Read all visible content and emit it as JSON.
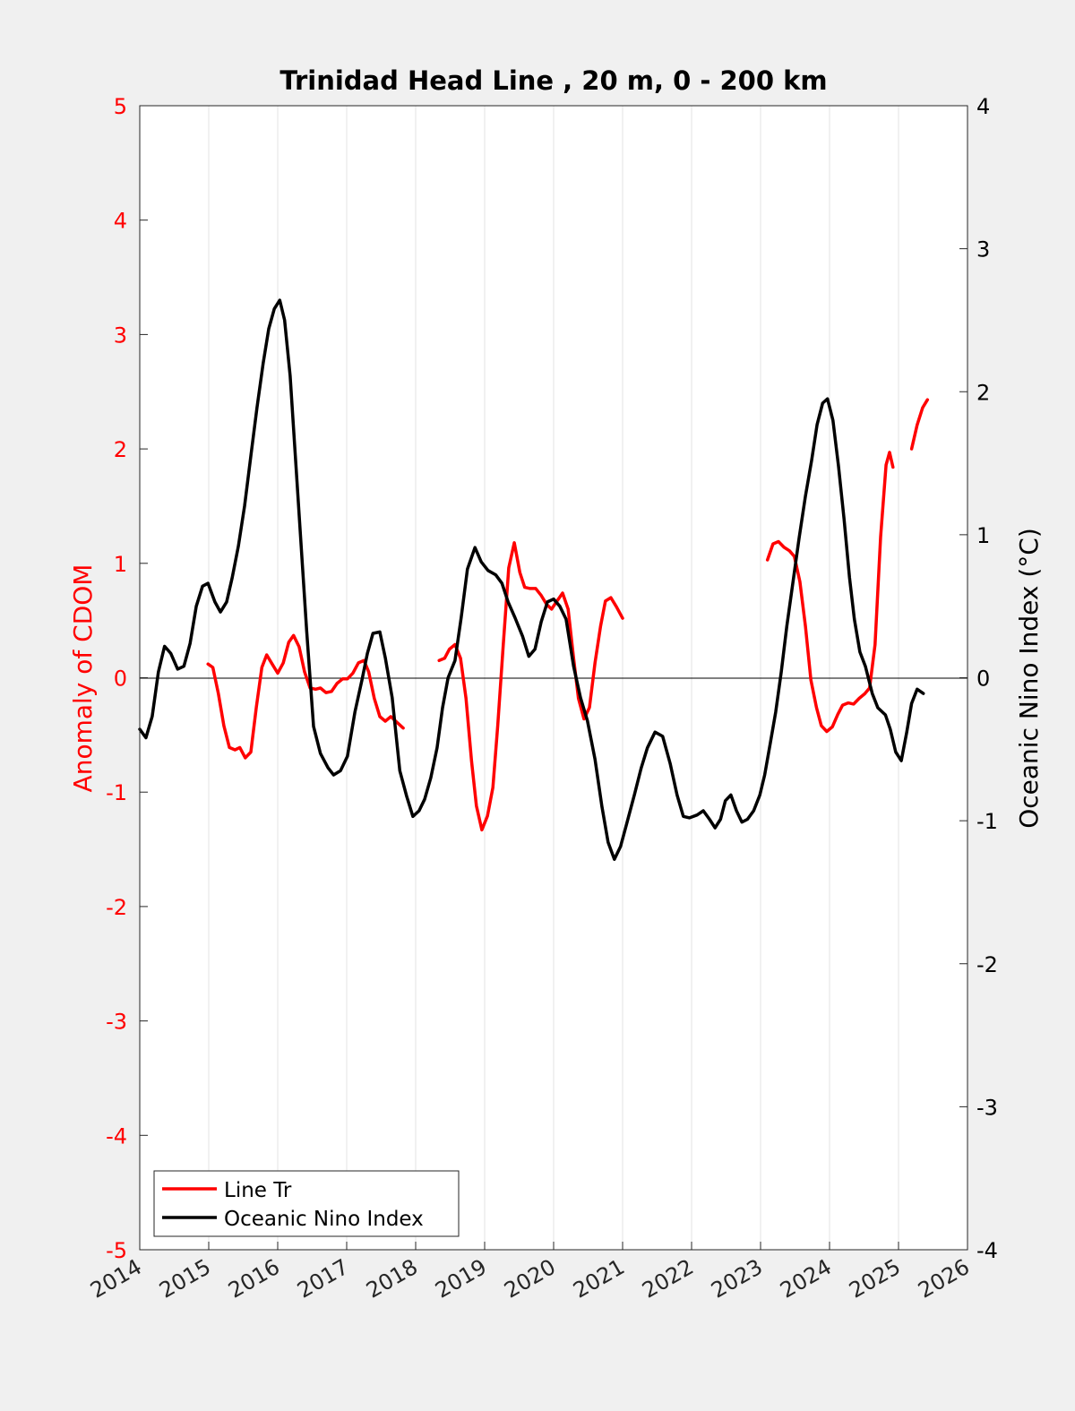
{
  "chart_data": {
    "type": "line",
    "title": "Trinidad Head Line , 20 m, 0 - 200 km",
    "xlabel": "",
    "ylabel_left": "Anomaly of CDOM",
    "ylabel_right": "Oceanic Nino Index (°C)",
    "xlim": [
      2014,
      2026
    ],
    "ylim_left": [
      -5,
      5
    ],
    "ylim_right": [
      -4,
      4
    ],
    "xticks": [
      2014,
      2015,
      2016,
      2017,
      2018,
      2019,
      2020,
      2021,
      2022,
      2023,
      2024,
      2025,
      2026
    ],
    "xtick_labels": [
      "2014",
      "2015",
      "2016",
      "2017",
      "2018",
      "2019",
      "2020",
      "2021",
      "2022",
      "2023",
      "2024",
      "2025",
      "2026"
    ],
    "yticks_left": [
      5,
      4,
      3,
      2,
      1,
      0,
      -1,
      -2,
      -3,
      -4,
      -5
    ],
    "ytick_labels_left": [
      "5",
      "4",
      "3",
      "2",
      "1",
      "0",
      "-1",
      "-2",
      "-3",
      "-4",
      "-5"
    ],
    "yticks_right": [
      4,
      3,
      2,
      1,
      0,
      -1,
      -2,
      -3,
      -4
    ],
    "ytick_labels_right": [
      "4",
      "3",
      "2",
      "1",
      "0",
      "-1",
      "-2",
      "-3",
      "-4"
    ],
    "grid": "vertical",
    "legend_position": "bottom-left",
    "colors": {
      "cdom": "#ff0000",
      "oni": "#000000",
      "left_axis": "#ff0000",
      "right_axis": "#000000"
    },
    "series": [
      {
        "name": "Line Tr",
        "axis": "left",
        "segments": [
          [
            [
              2014.99,
              0.12
            ],
            [
              2015.06,
              0.09
            ],
            [
              2015.14,
              -0.14
            ],
            [
              2015.22,
              -0.42
            ],
            [
              2015.3,
              -0.61
            ],
            [
              2015.38,
              -0.63
            ],
            [
              2015.45,
              -0.61
            ],
            [
              2015.53,
              -0.7
            ],
            [
              2015.61,
              -0.65
            ],
            [
              2015.69,
              -0.26
            ],
            [
              2015.77,
              0.09
            ],
            [
              2015.84,
              0.2
            ],
            [
              2015.92,
              0.12
            ],
            [
              2016.0,
              0.04
            ],
            [
              2016.08,
              0.13
            ],
            [
              2016.16,
              0.31
            ],
            [
              2016.23,
              0.37
            ],
            [
              2016.31,
              0.27
            ],
            [
              2016.39,
              0.05
            ],
            [
              2016.47,
              -0.09
            ],
            [
              2016.55,
              -0.1
            ],
            [
              2016.62,
              -0.09
            ],
            [
              2016.7,
              -0.13
            ],
            [
              2016.78,
              -0.12
            ],
            [
              2016.86,
              -0.05
            ],
            [
              2016.94,
              -0.01
            ],
            [
              2017.01,
              -0.01
            ],
            [
              2017.09,
              0.04
            ],
            [
              2017.17,
              0.13
            ],
            [
              2017.25,
              0.15
            ],
            [
              2017.32,
              0.05
            ],
            [
              2017.4,
              -0.18
            ],
            [
              2017.48,
              -0.34
            ],
            [
              2017.56,
              -0.38
            ],
            [
              2017.64,
              -0.34
            ],
            [
              2017.71,
              -0.38
            ],
            [
              2017.82,
              -0.44
            ]
          ],
          [
            [
              2018.34,
              0.15
            ],
            [
              2018.42,
              0.17
            ],
            [
              2018.49,
              0.25
            ],
            [
              2018.57,
              0.29
            ],
            [
              2018.65,
              0.17
            ],
            [
              2018.73,
              -0.18
            ],
            [
              2018.81,
              -0.73
            ],
            [
              2018.88,
              -1.12
            ],
            [
              2018.96,
              -1.33
            ],
            [
              2019.04,
              -1.21
            ],
            [
              2019.12,
              -0.96
            ],
            [
              2019.19,
              -0.42
            ],
            [
              2019.27,
              0.29
            ],
            [
              2019.35,
              0.96
            ],
            [
              2019.43,
              1.18
            ],
            [
              2019.51,
              0.92
            ],
            [
              2019.58,
              0.79
            ],
            [
              2019.66,
              0.78
            ],
            [
              2019.74,
              0.78
            ],
            [
              2019.82,
              0.72
            ],
            [
              2019.9,
              0.64
            ],
            [
              2019.97,
              0.6
            ],
            [
              2020.05,
              0.67
            ],
            [
              2020.13,
              0.74
            ],
            [
              2020.21,
              0.6
            ],
            [
              2020.29,
              0.17
            ],
            [
              2020.36,
              -0.18
            ],
            [
              2020.44,
              -0.36
            ],
            [
              2020.52,
              -0.26
            ],
            [
              2020.6,
              0.13
            ],
            [
              2020.68,
              0.45
            ],
            [
              2020.75,
              0.67
            ],
            [
              2020.83,
              0.7
            ],
            [
              2020.91,
              0.62
            ],
            [
              2021.0,
              0.52
            ]
          ],
          [
            [
              2023.1,
              1.03
            ],
            [
              2023.18,
              1.17
            ],
            [
              2023.26,
              1.19
            ],
            [
              2023.34,
              1.14
            ],
            [
              2023.42,
              1.11
            ],
            [
              2023.49,
              1.06
            ],
            [
              2023.57,
              0.84
            ],
            [
              2023.65,
              0.45
            ],
            [
              2023.73,
              -0.02
            ],
            [
              2023.81,
              -0.26
            ],
            [
              2023.88,
              -0.42
            ],
            [
              2023.96,
              -0.47
            ],
            [
              2024.04,
              -0.43
            ],
            [
              2024.12,
              -0.32
            ],
            [
              2024.19,
              -0.24
            ],
            [
              2024.27,
              -0.22
            ],
            [
              2024.35,
              -0.23
            ],
            [
              2024.43,
              -0.18
            ],
            [
              2024.51,
              -0.14
            ],
            [
              2024.58,
              -0.09
            ],
            [
              2024.66,
              0.29
            ],
            [
              2024.74,
              1.23
            ],
            [
              2024.82,
              1.86
            ],
            [
              2024.87,
              1.97
            ],
            [
              2024.92,
              1.84
            ]
          ],
          [
            [
              2025.19,
              2.0
            ],
            [
              2025.27,
              2.21
            ],
            [
              2025.35,
              2.36
            ],
            [
              2025.42,
              2.43
            ]
          ]
        ]
      },
      {
        "name": "Oceanic Nino Index",
        "axis": "right",
        "segments": [
          [
            [
              2014.0,
              -0.36
            ],
            [
              2014.09,
              -0.42
            ],
            [
              2014.18,
              -0.27
            ],
            [
              2014.27,
              0.04
            ],
            [
              2014.36,
              0.22
            ],
            [
              2014.45,
              0.17
            ],
            [
              2014.55,
              0.06
            ],
            [
              2014.64,
              0.08
            ],
            [
              2014.73,
              0.24
            ],
            [
              2014.82,
              0.5
            ],
            [
              2014.91,
              0.64
            ],
            [
              2014.99,
              0.66
            ],
            [
              2015.09,
              0.53
            ],
            [
              2015.17,
              0.46
            ],
            [
              2015.26,
              0.53
            ],
            [
              2015.34,
              0.7
            ],
            [
              2015.43,
              0.92
            ],
            [
              2015.52,
              1.2
            ],
            [
              2015.61,
              1.55
            ],
            [
              2015.7,
              1.89
            ],
            [
              2015.79,
              2.2
            ],
            [
              2015.87,
              2.44
            ],
            [
              2015.95,
              2.58
            ],
            [
              2016.03,
              2.64
            ],
            [
              2016.1,
              2.5
            ],
            [
              2016.18,
              2.11
            ],
            [
              2016.26,
              1.52
            ],
            [
              2016.34,
              0.92
            ],
            [
              2016.42,
              0.33
            ],
            [
              2016.52,
              -0.34
            ],
            [
              2016.62,
              -0.53
            ],
            [
              2016.73,
              -0.63
            ],
            [
              2016.81,
              -0.68
            ],
            [
              2016.91,
              -0.65
            ],
            [
              2017.01,
              -0.55
            ],
            [
              2017.12,
              -0.24
            ],
            [
              2017.22,
              -0.02
            ],
            [
              2017.3,
              0.17
            ],
            [
              2017.38,
              0.31
            ],
            [
              2017.48,
              0.32
            ],
            [
              2017.56,
              0.14
            ],
            [
              2017.66,
              -0.14
            ],
            [
              2017.77,
              -0.65
            ],
            [
              2017.87,
              -0.83
            ],
            [
              2017.96,
              -0.97
            ],
            [
              2018.05,
              -0.93
            ],
            [
              2018.13,
              -0.85
            ],
            [
              2018.22,
              -0.7
            ],
            [
              2018.31,
              -0.49
            ],
            [
              2018.39,
              -0.21
            ],
            [
              2018.47,
              0.0
            ],
            [
              2018.57,
              0.12
            ],
            [
              2018.66,
              0.42
            ],
            [
              2018.75,
              0.76
            ],
            [
              2018.86,
              0.91
            ],
            [
              2018.95,
              0.81
            ],
            [
              2019.05,
              0.75
            ],
            [
              2019.16,
              0.72
            ],
            [
              2019.25,
              0.66
            ],
            [
              2019.34,
              0.53
            ],
            [
              2019.44,
              0.42
            ],
            [
              2019.55,
              0.29
            ],
            [
              2019.64,
              0.15
            ],
            [
              2019.73,
              0.2
            ],
            [
              2019.82,
              0.39
            ],
            [
              2019.91,
              0.53
            ],
            [
              2020.0,
              0.55
            ],
            [
              2020.09,
              0.5
            ],
            [
              2020.18,
              0.41
            ],
            [
              2020.29,
              0.08
            ],
            [
              2020.39,
              -0.14
            ],
            [
              2020.49,
              -0.3
            ],
            [
              2020.6,
              -0.57
            ],
            [
              2020.7,
              -0.9
            ],
            [
              2020.79,
              -1.15
            ],
            [
              2020.88,
              -1.27
            ],
            [
              2020.97,
              -1.18
            ],
            [
              2021.06,
              -1.02
            ],
            [
              2021.17,
              -0.82
            ],
            [
              2021.27,
              -0.63
            ],
            [
              2021.36,
              -0.49
            ],
            [
              2021.47,
              -0.38
            ],
            [
              2021.58,
              -0.41
            ],
            [
              2021.69,
              -0.6
            ],
            [
              2021.79,
              -0.82
            ],
            [
              2021.88,
              -0.97
            ],
            [
              2021.97,
              -0.98
            ],
            [
              2022.08,
              -0.96
            ],
            [
              2022.17,
              -0.93
            ],
            [
              2022.26,
              -0.99
            ],
            [
              2022.34,
              -1.05
            ],
            [
              2022.42,
              -0.99
            ],
            [
              2022.49,
              -0.86
            ],
            [
              2022.57,
              -0.82
            ],
            [
              2022.65,
              -0.93
            ],
            [
              2022.73,
              -1.01
            ],
            [
              2022.81,
              -0.99
            ],
            [
              2022.9,
              -0.93
            ],
            [
              2022.99,
              -0.82
            ],
            [
              2023.06,
              -0.68
            ],
            [
              2023.14,
              -0.46
            ],
            [
              2023.22,
              -0.24
            ],
            [
              2023.3,
              0.04
            ],
            [
              2023.38,
              0.36
            ],
            [
              2023.47,
              0.67
            ],
            [
              2023.56,
              0.98
            ],
            [
              2023.65,
              1.27
            ],
            [
              2023.74,
              1.52
            ],
            [
              2023.82,
              1.77
            ],
            [
              2023.9,
              1.92
            ],
            [
              2023.97,
              1.95
            ],
            [
              2024.05,
              1.8
            ],
            [
              2024.13,
              1.48
            ],
            [
              2024.21,
              1.11
            ],
            [
              2024.29,
              0.7
            ],
            [
              2024.36,
              0.41
            ],
            [
              2024.44,
              0.18
            ],
            [
              2024.52,
              0.08
            ],
            [
              2024.62,
              -0.11
            ],
            [
              2024.7,
              -0.21
            ],
            [
              2024.81,
              -0.26
            ],
            [
              2024.88,
              -0.36
            ],
            [
              2024.96,
              -0.52
            ],
            [
              2025.04,
              -0.58
            ],
            [
              2025.12,
              -0.38
            ],
            [
              2025.19,
              -0.18
            ],
            [
              2025.27,
              -0.08
            ],
            [
              2025.36,
              -0.11
            ]
          ]
        ]
      }
    ]
  }
}
